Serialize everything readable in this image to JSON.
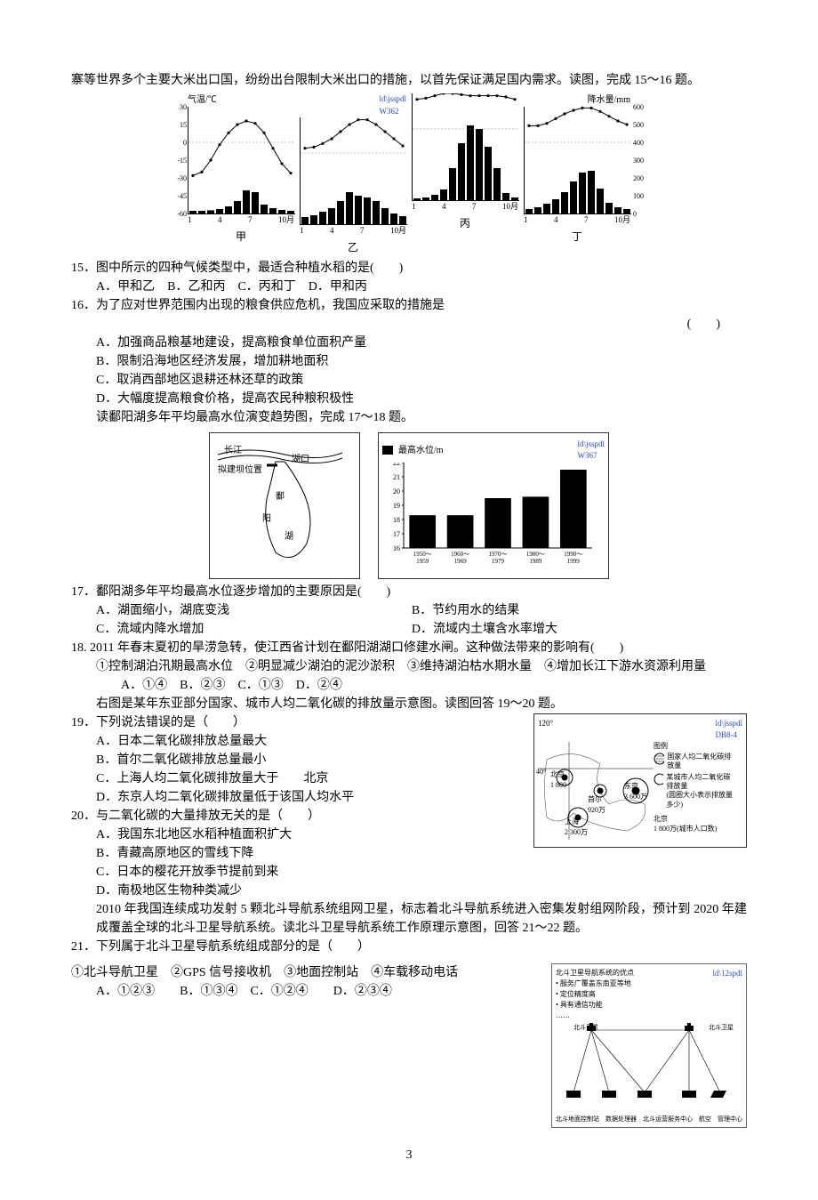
{
  "top_paragraph": "寨等世界多个主要大米出口国，纷纷出台限制大米出口的措施，以首先保证满足国内需求。读图，完成 15～16 题。",
  "climate": {
    "temp_axis_label": "气温/℃",
    "precip_axis_label": "降水量/mm",
    "temp_ticks": [
      "30",
      "15",
      "0",
      "-15",
      "-30",
      "-45",
      "-60"
    ],
    "precip_ticks": [
      "600",
      "500",
      "400",
      "300",
      "200",
      "100",
      "0"
    ],
    "x_ticks": [
      "1",
      "4",
      "7",
      "10月"
    ],
    "stations": [
      {
        "name": "甲",
        "temp": [
          -28,
          -25,
          -15,
          -2,
          8,
          15,
          18,
          16,
          8,
          -5,
          -18,
          -26
        ],
        "precip": [
          15,
          15,
          18,
          25,
          40,
          70,
          130,
          120,
          50,
          30,
          20,
          15
        ],
        "blue": ""
      },
      {
        "name": "乙",
        "temp": [
          4,
          5,
          8,
          12,
          18,
          24,
          28,
          28,
          24,
          18,
          12,
          6
        ],
        "precip": [
          40,
          50,
          70,
          90,
          130,
          180,
          160,
          150,
          130,
          90,
          60,
          45
        ],
        "blue": "ld\\jsspdl\nW362"
      },
      {
        "name": "丙",
        "temp": [
          25,
          26,
          28,
          30,
          30,
          29,
          28,
          28,
          28,
          28,
          27,
          25
        ],
        "precip": [
          10,
          15,
          30,
          60,
          180,
          320,
          420,
          400,
          300,
          180,
          40,
          15
        ],
        "blue": ""
      },
      {
        "name": "丁",
        "temp": [
          14,
          14,
          16,
          20,
          24,
          27,
          29,
          29,
          26,
          22,
          18,
          15
        ],
        "precip": [
          25,
          35,
          55,
          80,
          120,
          180,
          230,
          240,
          140,
          60,
          35,
          25
        ],
        "blue": ""
      }
    ],
    "temp_color": "#000000",
    "bar_color": "#000000",
    "border_color": "#000000",
    "blue_color": "#2a4bd7"
  },
  "q15": {
    "stem": "15．图中所示的四种气候类型中，最适合种植水稻的是(　　)",
    "choices": "A．甲和乙　B．乙和丙　C．丙和丁　D．甲和丙"
  },
  "q16": {
    "stem": "16．为了应对世界范围内出现的粮食供应危机，我国应采取的措施是",
    "bracket": "(　　)",
    "a": "A．加强商品粮基地建设，提高粮食单位面积产量",
    "b": "B．限制沿海地区经济发展，增加耕地面积",
    "c": "C．取消西部地区退耕还林还草的政策",
    "d": "D．大幅度提高粮食价格，提高农民种粮积极性"
  },
  "poyang_intro": "读鄱阳湖多年平均最高水位演变趋势图，完成 17～18 题。",
  "poyang_map": {
    "labels": [
      "长江",
      "拟建坝位置",
      "湖口",
      "鄱",
      "阳",
      "湖"
    ]
  },
  "poyang_bar": {
    "legend": "最高水位/m",
    "blue": "ld\\jsspdl\nW367",
    "y_label_vals": [
      "22",
      "21",
      "20",
      "19",
      "18",
      "17",
      "16"
    ],
    "bars": [
      {
        "label": "1950～\n1959",
        "value": 18.3
      },
      {
        "label": "1960～\n1969",
        "value": 18.3
      },
      {
        "label": "1970～\n1979",
        "value": 19.5
      },
      {
        "label": "1980～\n1989",
        "value": 19.6
      },
      {
        "label": "1990～\n1999",
        "value": 21.5
      }
    ],
    "ylim": [
      16,
      22
    ],
    "bar_color": "#000000",
    "grid_color": "#000000"
  },
  "q17": {
    "stem": "17．鄱阳湖多年平均最高水位逐步增加的主要原因是(　　)",
    "a": "A．湖面缩小，湖底变浅",
    "b": "B．节约用水的结果",
    "c": "C．流域内降水增加",
    "d": "D．流域内土壤含水率增大"
  },
  "q18": {
    "stem": "18. 2011 年春末夏初的旱涝急转，使江西省计划在鄱阳湖湖口修建水闸。这种做法带来的影响有(　　)",
    "statements": "①控制湖泊汛期最高水位　②明显减少湖泊的泥沙淤积　③维持湖泊枯水期水量　④增加长江下游水资源利用量",
    "choices": "A．①④　B．②③　C．①③　D．②④"
  },
  "co2_intro": "右图是某年东亚部分国家、城市人均二氧化碳的排放量示意图。读图回答 19～20 题。",
  "q19": {
    "stem": "19．下列说法错误的是（　　）",
    "a": "A．日本二氧化碳排放总量最大",
    "b": "B．首尔二氧化碳排放总量最小",
    "c": "C．上海人均二氧化碳排放量大于　　北京",
    "d": "D．东京人均二氧化碳排放量低于该国人均水平"
  },
  "q20": {
    "stem": "20．与二氧化碳的大量排放无关的是（　　）",
    "a": "A．我国东北地区水稻种植面积扩大",
    "b": "B．青藏高原地区的雪线下降",
    "c": "C．日本的樱花开放季节提前到来",
    "d": "D．南极地区生物种类减少"
  },
  "co2_map": {
    "lon_label": "120°",
    "lat_label": "40°",
    "blue": "ld\\jsspdl\nDB8-4",
    "cities": [
      {
        "name": "北京",
        "pop": "1 800"
      },
      {
        "name": "首尔",
        "pop": "920万"
      },
      {
        "name": "东京",
        "pop": "3 600万"
      },
      {
        "name": "上海",
        "pop": "2 300万"
      }
    ],
    "legend_title": "图例",
    "legend_items": [
      "国家人均二氧化碳排放量",
      "某城市人均二氧化碳排放量\n(圆圈大小表示排放量多少)"
    ],
    "legend_sample": "北京\n1 800万(城市人口数)"
  },
  "beidou_intro": "2010 年我国连续成功发射 5 颗北斗导航系统组网卫星，标志着北斗导航系统进入密集发射组网阶段，预计到 2020 年建成覆盖全球的北斗卫星导航系统。读北斗卫星导航系统工作原理示意图，回答 21～22 题。",
  "q21": {
    "stem": "21．下列属于北斗卫星导航系统组成部分的是（　　）",
    "statements": "①北斗导航卫星　②GPS 信号接收机　③地面控制站　④车载移动电话",
    "choices": "A．①②③　　B．①③④　C．①②④　　D．②③④"
  },
  "beidou_map": {
    "blue": "ld\\12spdl",
    "title": "北斗卫星导航系统的优点",
    "bullets": [
      "服务广覆盖东南亚等地",
      "定位精度高",
      "具有通信功能",
      "……"
    ],
    "sat_labels": [
      "北斗卫星",
      "北斗卫星"
    ],
    "ground_labels": [
      "北斗地面控制站",
      "数据处理器",
      "北斗运营服务中心",
      "航空",
      "管理中心"
    ]
  },
  "page_number": "3"
}
